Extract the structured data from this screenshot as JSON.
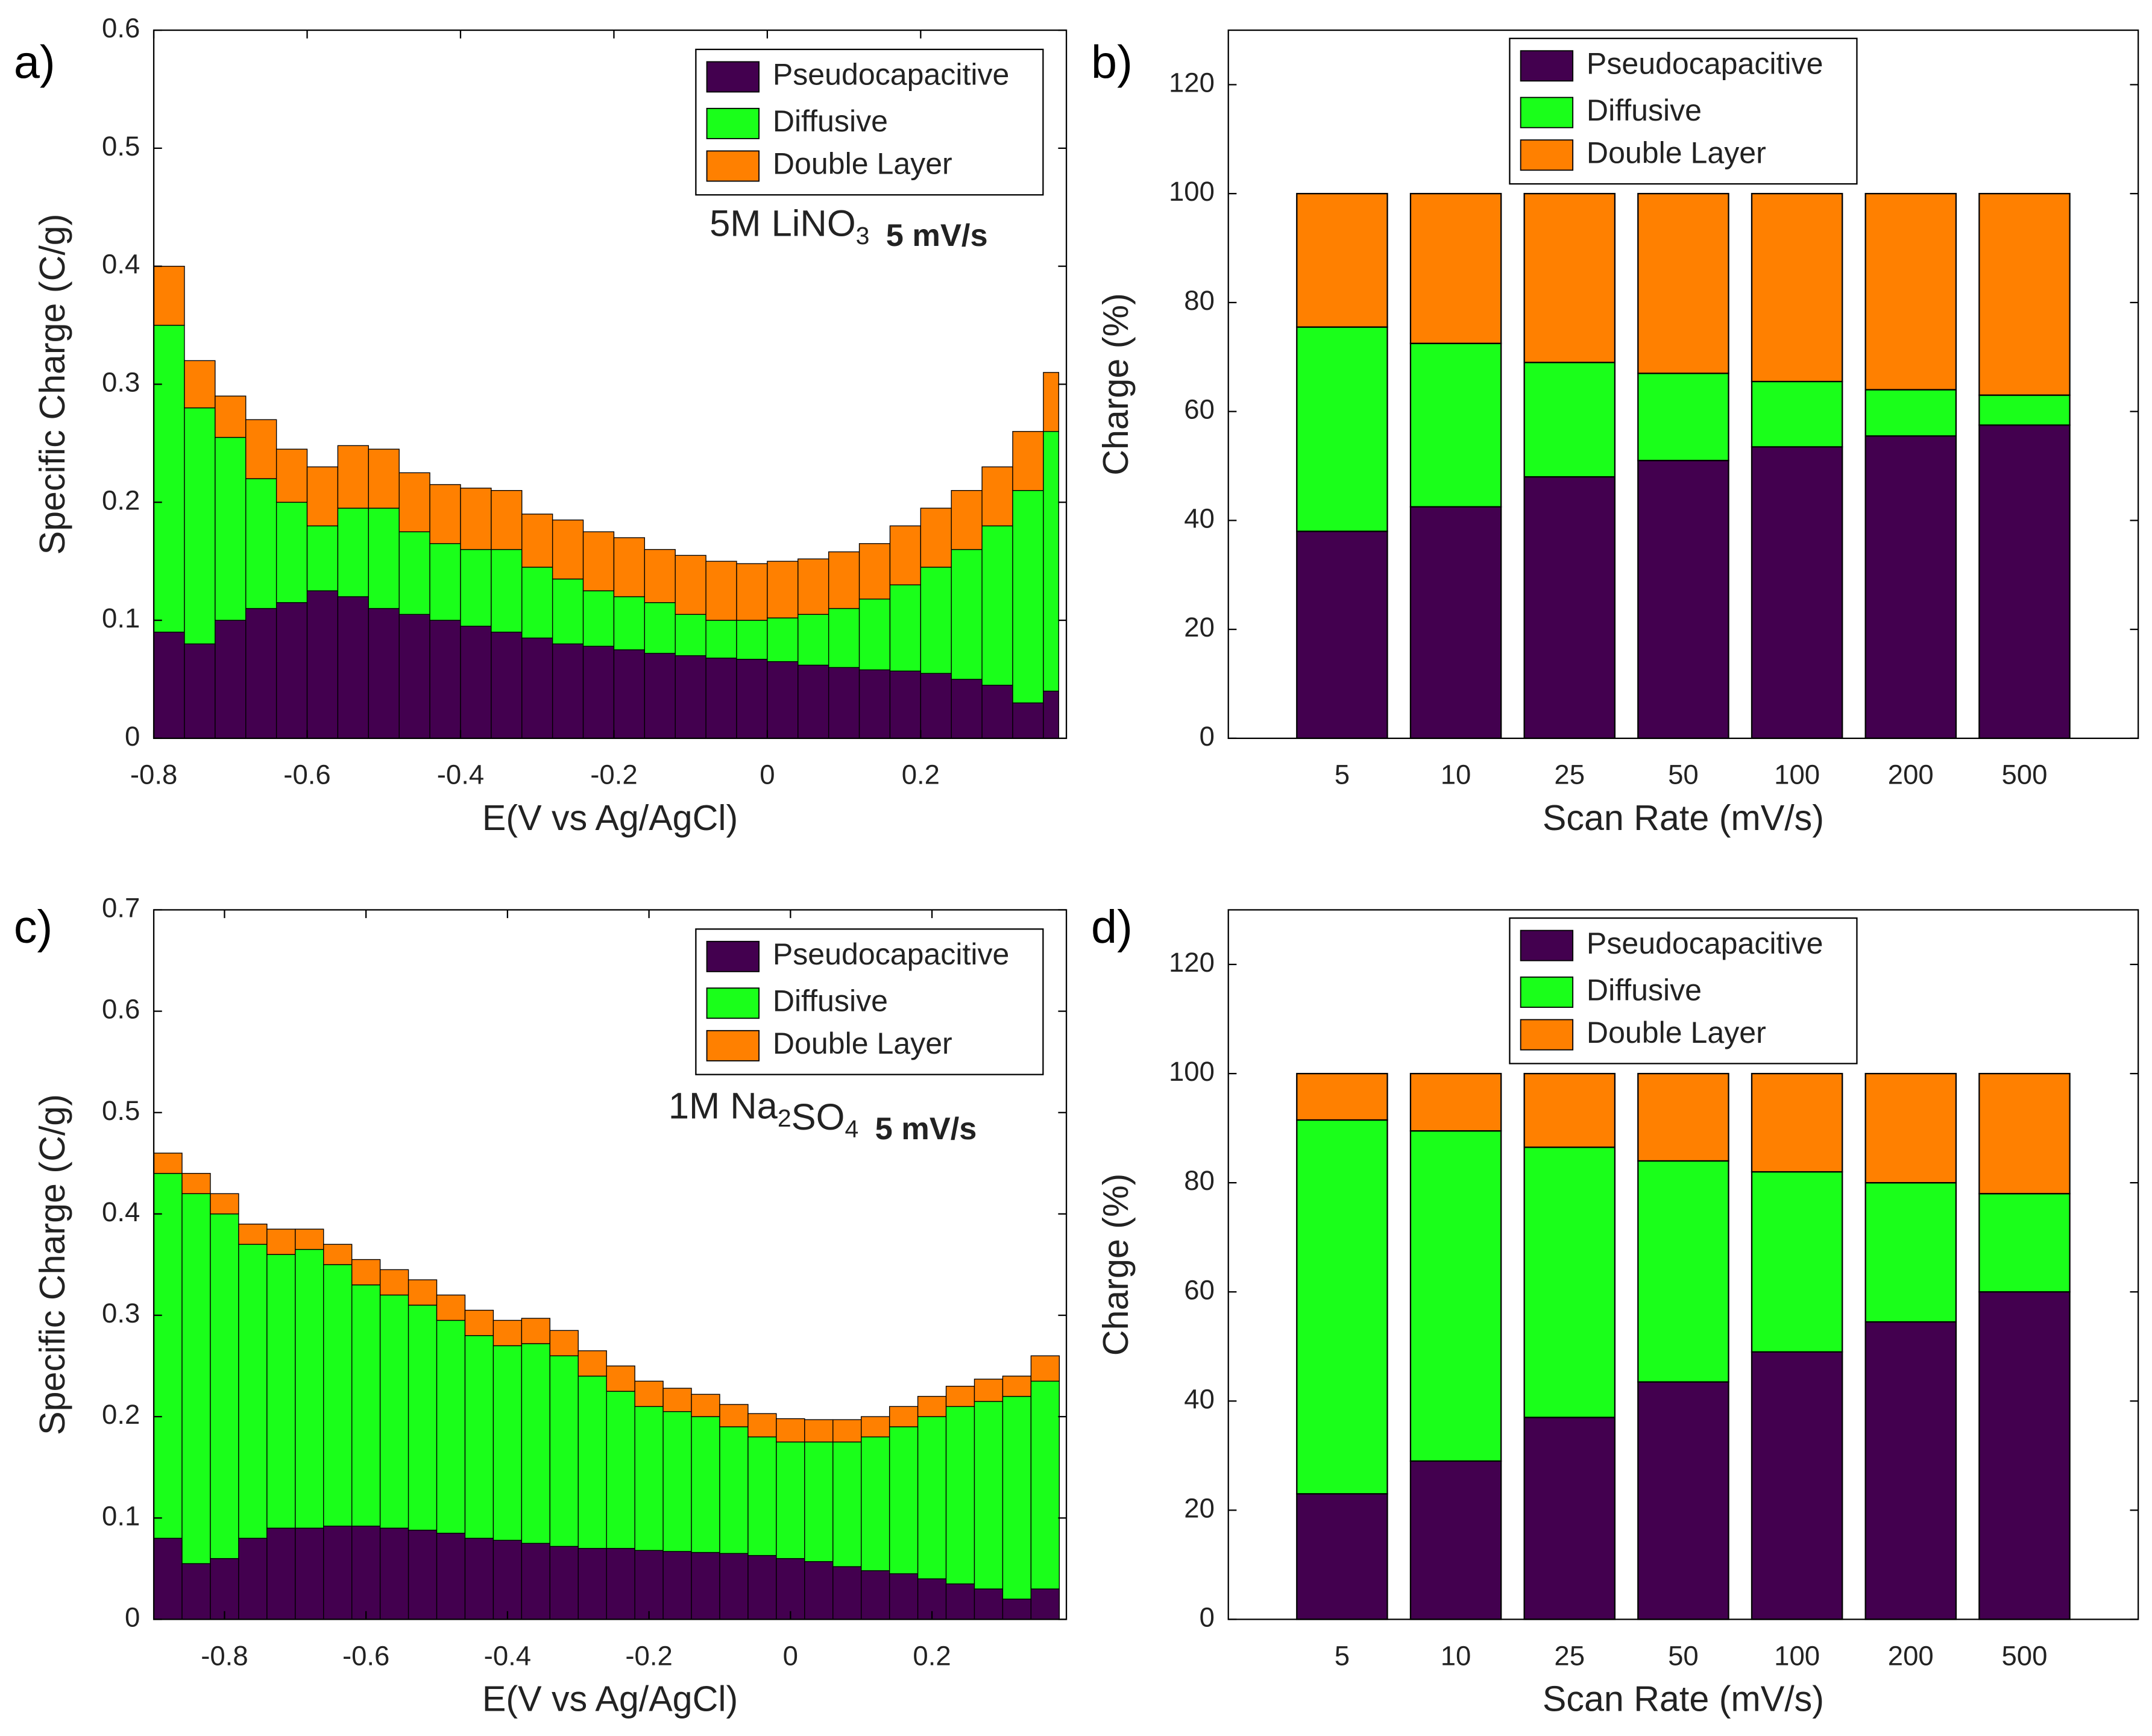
{
  "chart_data": [
    {
      "type": "stacked_histogram",
      "panel_label": "a)",
      "ylabel": "Specific Charge (C/g)",
      "xlabel": "E(V vs Ag/AgCl)",
      "annotation": {
        "text": "5M LiNO",
        "sub": "3",
        "rate": "5 mV/s"
      },
      "legend": "upper right",
      "xlim": [
        -0.8,
        0.39
      ],
      "ylim": [
        0,
        0.6
      ],
      "xticks": [
        -0.8,
        -0.6,
        -0.4,
        -0.2,
        0,
        0.2
      ],
      "yticks": [
        0,
        0.1,
        0.2,
        0.3,
        0.4,
        0.5,
        0.6
      ],
      "bins": [
        -0.8,
        -0.76,
        -0.72,
        -0.68,
        -0.64,
        -0.6,
        -0.56,
        -0.52,
        -0.48,
        -0.44,
        -0.4,
        -0.36,
        -0.32,
        -0.28,
        -0.24,
        -0.2,
        -0.16,
        -0.12,
        -0.08,
        -0.04,
        0,
        0.04,
        0.08,
        0.12,
        0.16,
        0.2,
        0.24,
        0.28,
        0.32,
        0.36,
        0.38
      ],
      "series": [
        {
          "name": "Pseudocapacitive",
          "color": "#43004f",
          "values": [
            0.09,
            0.08,
            0.1,
            0.11,
            0.115,
            0.125,
            0.12,
            0.11,
            0.105,
            0.1,
            0.095,
            0.09,
            0.085,
            0.08,
            0.078,
            0.075,
            0.072,
            0.07,
            0.068,
            0.067,
            0.065,
            0.062,
            0.06,
            0.058,
            0.057,
            0.055,
            0.05,
            0.045,
            0.03,
            0.04
          ]
        },
        {
          "name": "Diffusive",
          "color": "#1aff1a",
          "values": [
            0.26,
            0.2,
            0.155,
            0.11,
            0.085,
            0.055,
            0.075,
            0.085,
            0.07,
            0.065,
            0.065,
            0.07,
            0.06,
            0.055,
            0.047,
            0.045,
            0.043,
            0.035,
            0.032,
            0.033,
            0.037,
            0.043,
            0.05,
            0.06,
            0.073,
            0.09,
            0.11,
            0.135,
            0.18,
            0.22
          ]
        },
        {
          "name": "Double Layer",
          "color": "#ff8000",
          "values": [
            0.05,
            0.04,
            0.035,
            0.05,
            0.045,
            0.05,
            0.053,
            0.05,
            0.05,
            0.05,
            0.052,
            0.05,
            0.045,
            0.05,
            0.05,
            0.05,
            0.045,
            0.05,
            0.05,
            0.048,
            0.048,
            0.047,
            0.048,
            0.047,
            0.05,
            0.05,
            0.05,
            0.05,
            0.05,
            0.05
          ]
        }
      ]
    },
    {
      "type": "stacked_bar",
      "panel_label": "b)",
      "ylabel": "Charge (%)",
      "xlabel": "Scan Rate (mV/s)",
      "legend": "upper center",
      "categories": [
        "5",
        "10",
        "25",
        "50",
        "100",
        "200",
        "500"
      ],
      "ylim": [
        0,
        130
      ],
      "yticks": [
        0,
        20,
        40,
        60,
        80,
        100,
        120
      ],
      "series": [
        {
          "name": "Pseudocapacitive",
          "color": "#43004f",
          "values": [
            38,
            42.5,
            48,
            51,
            53.5,
            55.5,
            57.5
          ]
        },
        {
          "name": "Diffusive",
          "color": "#1aff1a",
          "values": [
            37.5,
            30,
            21,
            16,
            12,
            8.5,
            5.5
          ]
        },
        {
          "name": "Double Layer",
          "color": "#ff8000",
          "values": [
            24.5,
            27.5,
            31,
            33,
            34.5,
            36,
            37
          ]
        }
      ]
    },
    {
      "type": "stacked_histogram",
      "panel_label": "c)",
      "ylabel": "Specific Charge (C/g)",
      "xlabel": "E(V vs Ag/AgCl)",
      "annotation": {
        "text": "1M Na",
        "sub": "2",
        "text2": "SO",
        "sub2": "4",
        "rate": "5 mV/s"
      },
      "legend": "upper right",
      "xlim": [
        -0.9,
        0.39
      ],
      "ylim": [
        0,
        0.7
      ],
      "xticks": [
        -0.8,
        -0.6,
        -0.4,
        -0.2,
        0,
        0.2
      ],
      "yticks": [
        0,
        0.1,
        0.2,
        0.3,
        0.4,
        0.5,
        0.6,
        0.7
      ],
      "bins": [
        -0.9,
        -0.86,
        -0.82,
        -0.78,
        -0.74,
        -0.7,
        -0.66,
        -0.62,
        -0.58,
        -0.54,
        -0.5,
        -0.46,
        -0.42,
        -0.38,
        -0.34,
        -0.3,
        -0.26,
        -0.22,
        -0.18,
        -0.14,
        -0.1,
        -0.06,
        -0.02,
        0.02,
        0.06,
        0.1,
        0.14,
        0.18,
        0.22,
        0.26,
        0.3,
        0.34,
        0.38
      ],
      "series": [
        {
          "name": "Pseudocapacitive",
          "color": "#43004f",
          "values": [
            0.08,
            0.055,
            0.06,
            0.08,
            0.09,
            0.09,
            0.092,
            0.092,
            0.09,
            0.088,
            0.085,
            0.08,
            0.078,
            0.075,
            0.072,
            0.07,
            0.07,
            0.068,
            0.067,
            0.066,
            0.065,
            0.063,
            0.06,
            0.057,
            0.052,
            0.048,
            0.045,
            0.04,
            0.035,
            0.03,
            0.02,
            0.03
          ]
        },
        {
          "name": "Diffusive",
          "color": "#1aff1a",
          "values": [
            0.36,
            0.365,
            0.34,
            0.29,
            0.27,
            0.275,
            0.258,
            0.238,
            0.23,
            0.222,
            0.21,
            0.2,
            0.192,
            0.197,
            0.188,
            0.17,
            0.155,
            0.142,
            0.138,
            0.134,
            0.125,
            0.117,
            0.115,
            0.118,
            0.123,
            0.132,
            0.145,
            0.16,
            0.175,
            0.185,
            0.2,
            0.205
          ]
        },
        {
          "name": "Double Layer",
          "color": "#ff8000",
          "values": [
            0.02,
            0.02,
            0.02,
            0.02,
            0.025,
            0.02,
            0.02,
            0.025,
            0.025,
            0.025,
            0.025,
            0.025,
            0.025,
            0.025,
            0.025,
            0.025,
            0.025,
            0.025,
            0.023,
            0.022,
            0.022,
            0.023,
            0.023,
            0.022,
            0.022,
            0.02,
            0.02,
            0.02,
            0.02,
            0.022,
            0.02,
            0.025
          ]
        }
      ]
    },
    {
      "type": "stacked_bar",
      "panel_label": "d)",
      "ylabel": "Charge (%)",
      "xlabel": "Scan Rate (mV/s)",
      "legend": "upper center",
      "categories": [
        "5",
        "10",
        "25",
        "50",
        "100",
        "200",
        "500"
      ],
      "ylim": [
        0,
        130
      ],
      "yticks": [
        0,
        20,
        40,
        60,
        80,
        100,
        120
      ],
      "series": [
        {
          "name": "Pseudocapacitive",
          "color": "#43004f",
          "values": [
            23,
            29,
            37,
            43.5,
            49,
            54.5,
            60
          ]
        },
        {
          "name": "Diffusive",
          "color": "#1aff1a",
          "values": [
            68.5,
            60.5,
            49.5,
            40.5,
            33,
            25.5,
            18
          ]
        },
        {
          "name": "Double Layer",
          "color": "#ff8000",
          "values": [
            8.5,
            10.5,
            13.5,
            16,
            18,
            20,
            22
          ]
        }
      ]
    }
  ]
}
